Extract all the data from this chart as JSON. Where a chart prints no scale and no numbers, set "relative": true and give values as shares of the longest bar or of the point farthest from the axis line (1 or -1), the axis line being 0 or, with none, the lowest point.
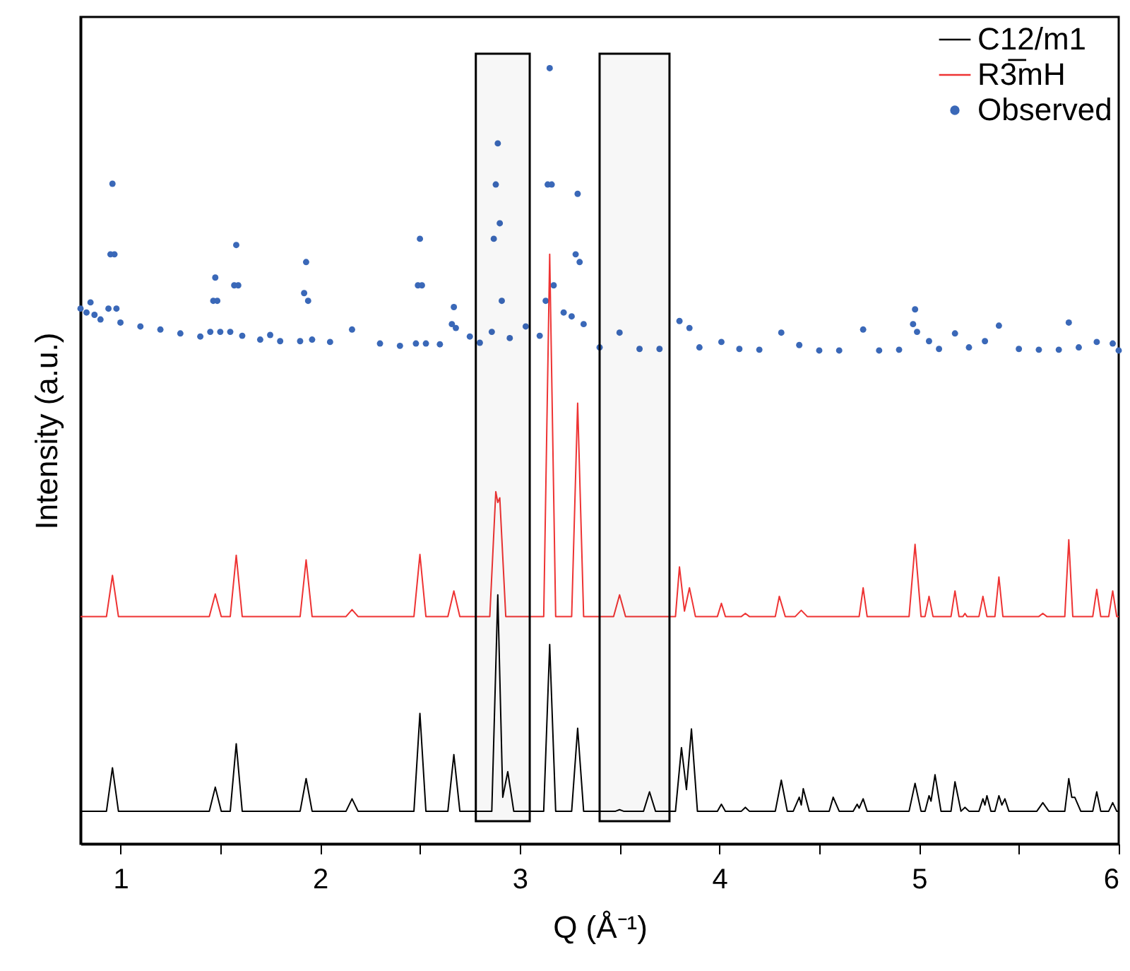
{
  "chart_data": {
    "type": "line",
    "relative": true,
    "xlabel": "Q (Å⁻¹)",
    "ylabel": "Intensity (a.u.)",
    "xlim": [
      0.8,
      6
    ],
    "xticks": [
      1,
      {
        "value": 1.5,
        "label": null
      },
      2,
      {
        "value": 2.5,
        "label": null
      },
      3,
      {
        "value": 3.5,
        "label": null
      },
      4,
      {
        "value": 4.5,
        "label": null
      },
      5,
      {
        "value": 5.5,
        "label": null
      },
      6
    ],
    "legend": "top right",
    "bands": [
      {
        "axis": "x",
        "from": 2.78,
        "to": 3.05,
        "color": "#000000"
      },
      {
        "axis": "x",
        "from": 3.4,
        "to": 3.75,
        "color": "#000000"
      }
    ],
    "series": [
      {
        "name": "C12/m1",
        "color": "#000000",
        "x": [
          0.8,
          0.93,
          0.96,
          0.99,
          1.445,
          1.475,
          1.505,
          1.55,
          1.58,
          1.61,
          1.9,
          1.93,
          1.96,
          2.13,
          2.16,
          2.19,
          2.47,
          2.5,
          2.53,
          2.64,
          2.67,
          2.7,
          2.86,
          2.89,
          2.915,
          2.94,
          2.97,
          3.12,
          3.15,
          3.18,
          3.26,
          3.29,
          3.32,
          3.48,
          3.5,
          3.52,
          3.62,
          3.65,
          3.68,
          3.78,
          3.81,
          3.835,
          3.86,
          3.89,
          3.99,
          4.01,
          4.03,
          4.11,
          4.13,
          4.15,
          4.28,
          4.31,
          4.34,
          4.37,
          4.4,
          4.41,
          4.42,
          4.45,
          4.55,
          4.57,
          4.6,
          4.67,
          4.69,
          4.7,
          4.72,
          4.74,
          4.95,
          4.98,
          5.01,
          5.03,
          5.05,
          5.06,
          5.08,
          5.11,
          5.16,
          5.18,
          5.21,
          5.23,
          5.25,
          5.3,
          5.32,
          5.33,
          5.34,
          5.36,
          5.38,
          5.4,
          5.415,
          5.43,
          5.45,
          5.59,
          5.62,
          5.65,
          5.73,
          5.75,
          5.765,
          5.78,
          5.81,
          5.87,
          5.89,
          5.91,
          5.95,
          5.97,
          5.99,
          6.0
        ],
        "values": [
          0.042,
          0.042,
          0.098,
          0.042,
          0.042,
          0.073,
          0.042,
          0.042,
          0.129,
          0.042,
          0.042,
          0.084,
          0.042,
          0.042,
          0.058,
          0.042,
          0.042,
          0.168,
          0.042,
          0.042,
          0.115,
          0.042,
          0.042,
          0.321,
          0.06,
          0.093,
          0.042,
          0.042,
          0.257,
          0.042,
          0.042,
          0.149,
          0.042,
          0.042,
          0.044,
          0.042,
          0.042,
          0.067,
          0.042,
          0.042,
          0.124,
          0.07,
          0.148,
          0.042,
          0.042,
          0.051,
          0.042,
          0.042,
          0.047,
          0.042,
          0.042,
          0.082,
          0.042,
          0.042,
          0.06,
          0.05,
          0.071,
          0.042,
          0.042,
          0.06,
          0.042,
          0.042,
          0.051,
          0.046,
          0.058,
          0.042,
          0.042,
          0.078,
          0.042,
          0.042,
          0.062,
          0.055,
          0.089,
          0.042,
          0.042,
          0.08,
          0.042,
          0.047,
          0.042,
          0.042,
          0.058,
          0.05,
          0.062,
          0.042,
          0.042,
          0.062,
          0.05,
          0.058,
          0.042,
          0.042,
          0.053,
          0.042,
          0.042,
          0.084,
          0.06,
          0.06,
          0.042,
          0.042,
          0.067,
          0.042,
          0.042,
          0.053,
          0.042,
          0.042
        ]
      },
      {
        "name": "R3̅mH",
        "color": "#ee3333",
        "x": [
          0.8,
          0.93,
          0.96,
          0.99,
          1.445,
          1.475,
          1.505,
          1.55,
          1.58,
          1.61,
          1.9,
          1.93,
          1.96,
          2.13,
          2.16,
          2.19,
          2.47,
          2.5,
          2.53,
          2.64,
          2.67,
          2.7,
          2.85,
          2.88,
          2.89,
          2.9,
          2.93,
          3.12,
          3.15,
          3.18,
          3.26,
          3.29,
          3.32,
          3.47,
          3.5,
          3.53,
          3.78,
          3.8,
          3.825,
          3.85,
          3.88,
          3.99,
          4.01,
          4.03,
          4.11,
          4.13,
          4.15,
          4.28,
          4.3,
          4.33,
          4.38,
          4.41,
          4.44,
          4.7,
          4.72,
          4.74,
          4.95,
          4.98,
          5.01,
          5.03,
          5.05,
          5.07,
          5.16,
          5.18,
          5.2,
          5.22,
          5.23,
          5.24,
          5.3,
          5.32,
          5.34,
          5.38,
          5.4,
          5.42,
          5.6,
          5.62,
          5.64,
          5.73,
          5.75,
          5.77,
          5.87,
          5.89,
          5.91,
          5.95,
          5.97,
          5.99,
          6.0
        ],
        "values": [
          0.293,
          0.293,
          0.346,
          0.293,
          0.293,
          0.322,
          0.293,
          0.293,
          0.372,
          0.293,
          0.293,
          0.366,
          0.293,
          0.293,
          0.302,
          0.293,
          0.293,
          0.373,
          0.293,
          0.293,
          0.326,
          0.293,
          0.293,
          0.454,
          0.44,
          0.446,
          0.293,
          0.293,
          0.76,
          0.293,
          0.293,
          0.568,
          0.293,
          0.293,
          0.321,
          0.293,
          0.293,
          0.357,
          0.3,
          0.33,
          0.293,
          0.293,
          0.31,
          0.293,
          0.293,
          0.297,
          0.293,
          0.293,
          0.319,
          0.293,
          0.293,
          0.301,
          0.293,
          0.293,
          0.33,
          0.293,
          0.293,
          0.386,
          0.293,
          0.293,
          0.319,
          0.293,
          0.293,
          0.326,
          0.293,
          0.293,
          0.297,
          0.293,
          0.293,
          0.319,
          0.293,
          0.293,
          0.344,
          0.293,
          0.293,
          0.297,
          0.293,
          0.293,
          0.392,
          0.293,
          0.293,
          0.328,
          0.293,
          0.293,
          0.326,
          0.293,
          0.293
        ]
      },
      {
        "name": "Observed",
        "type": "scatter",
        "color": "#3a68b8",
        "x": [
          0.8,
          0.83,
          0.85,
          0.87,
          0.9,
          0.94,
          0.95,
          0.96,
          0.97,
          0.98,
          1.0,
          1.1,
          1.2,
          1.3,
          1.4,
          1.45,
          1.465,
          1.475,
          1.485,
          1.5,
          1.55,
          1.57,
          1.58,
          1.59,
          1.61,
          1.7,
          1.75,
          1.8,
          1.9,
          1.92,
          1.93,
          1.94,
          1.96,
          2.05,
          2.16,
          2.3,
          2.4,
          2.48,
          2.49,
          2.5,
          2.51,
          2.53,
          2.6,
          2.66,
          2.67,
          2.68,
          2.75,
          2.8,
          2.86,
          2.87,
          2.88,
          2.89,
          2.9,
          2.91,
          2.95,
          3.03,
          3.1,
          3.13,
          3.14,
          3.15,
          3.16,
          3.17,
          3.22,
          3.26,
          3.28,
          3.29,
          3.3,
          3.32,
          3.4,
          3.5,
          3.6,
          3.7,
          3.8,
          3.85,
          3.9,
          4.01,
          4.1,
          4.2,
          4.31,
          4.4,
          4.5,
          4.6,
          4.72,
          4.8,
          4.9,
          4.97,
          4.98,
          4.99,
          5.05,
          5.1,
          5.18,
          5.25,
          5.33,
          5.4,
          5.5,
          5.6,
          5.7,
          5.75,
          5.8,
          5.89,
          5.97,
          6.0
        ],
        "values": [
          0.69,
          0.685,
          0.698,
          0.682,
          0.676,
          0.69,
          0.76,
          0.851,
          0.76,
          0.69,
          0.672,
          0.667,
          0.663,
          0.658,
          0.654,
          0.66,
          0.7,
          0.73,
          0.7,
          0.66,
          0.66,
          0.72,
          0.772,
          0.72,
          0.655,
          0.65,
          0.656,
          0.648,
          0.648,
          0.71,
          0.75,
          0.7,
          0.65,
          0.647,
          0.663,
          0.645,
          0.642,
          0.645,
          0.72,
          0.78,
          0.72,
          0.645,
          0.644,
          0.67,
          0.692,
          0.665,
          0.654,
          0.646,
          0.66,
          0.78,
          0.85,
          0.903,
          0.8,
          0.7,
          0.652,
          0.667,
          0.655,
          0.7,
          0.85,
          1,
          0.85,
          0.72,
          0.685,
          0.68,
          0.76,
          0.838,
          0.75,
          0.67,
          0.64,
          0.659,
          0.638,
          0.638,
          0.674,
          0.665,
          0.64,
          0.647,
          0.638,
          0.637,
          0.659,
          0.643,
          0.636,
          0.636,
          0.663,
          0.636,
          0.637,
          0.67,
          0.689,
          0.66,
          0.648,
          0.638,
          0.658,
          0.64,
          0.648,
          0.668,
          0.638,
          0.637,
          0.637,
          0.672,
          0.64,
          0.647,
          0.645,
          0.636
        ]
      }
    ]
  }
}
